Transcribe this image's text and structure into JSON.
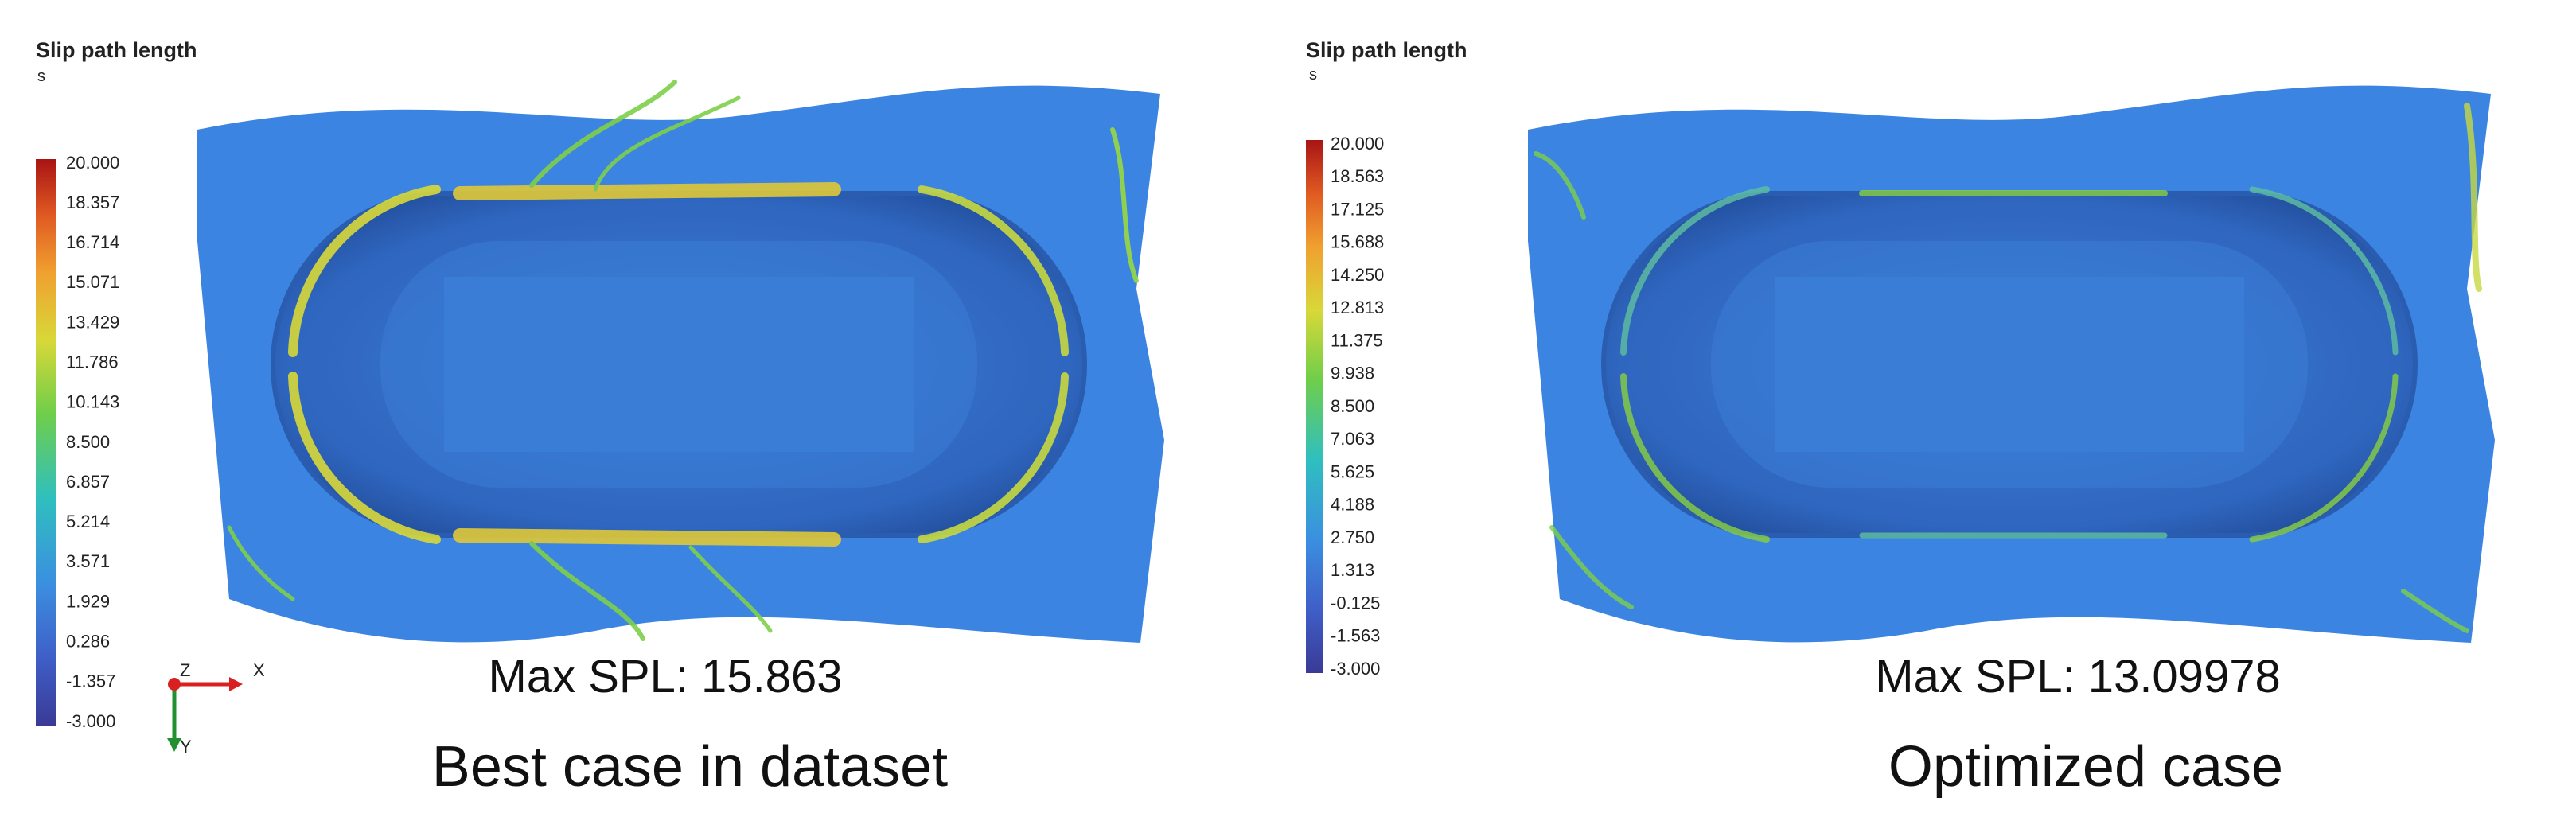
{
  "panels": [
    {
      "legend_title": "Slip path length",
      "unit": "s",
      "colorbar_labels": [
        "20.000",
        "18.357",
        "16.714",
        "15.071",
        "13.429",
        "11.786",
        "10.143",
        "8.500",
        "6.857",
        "5.214",
        "3.571",
        "1.929",
        "0.286",
        "-1.357",
        "-3.000"
      ],
      "caption": "Max SPL: 15.863",
      "subtitle": "Best case in dataset",
      "axes": {
        "z": "Z",
        "x": "X",
        "y": "Y"
      }
    },
    {
      "legend_title": "Slip path length",
      "unit": "s",
      "colorbar_labels": [
        "20.000",
        "18.563",
        "17.125",
        "15.688",
        "14.250",
        "12.813",
        "11.375",
        "9.938",
        "8.500",
        "7.063",
        "5.625",
        "4.188",
        "2.750",
        "1.313",
        "-0.125",
        "-1.563",
        "-3.000"
      ],
      "caption": "Max SPL: 13.09978",
      "subtitle": "Optimized case"
    }
  ]
}
